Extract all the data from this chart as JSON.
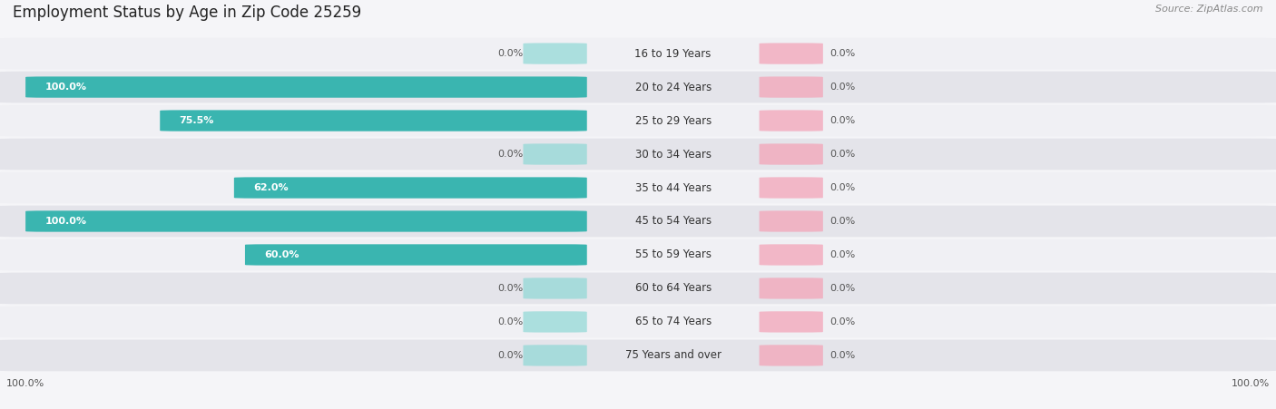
{
  "title": "Employment Status by Age in Zip Code 25259",
  "source": "Source: ZipAtlas.com",
  "categories": [
    "16 to 19 Years",
    "20 to 24 Years",
    "25 to 29 Years",
    "30 to 34 Years",
    "35 to 44 Years",
    "45 to 54 Years",
    "55 to 59 Years",
    "60 to 64 Years",
    "65 to 74 Years",
    "75 Years and over"
  ],
  "in_labor_force": [
    0.0,
    100.0,
    75.5,
    0.0,
    62.0,
    100.0,
    60.0,
    0.0,
    0.0,
    0.0
  ],
  "unemployed": [
    0.0,
    0.0,
    0.0,
    0.0,
    0.0,
    0.0,
    0.0,
    0.0,
    0.0,
    0.0
  ],
  "labor_color": "#3ab5b0",
  "labor_color_light": "#8ed8d5",
  "unemployed_color": "#f4a0b5",
  "unemployed_color_light": "#f4a0b5",
  "row_bg_odd": "#f0f0f4",
  "row_bg_even": "#e4e4ea",
  "title_fontsize": 12,
  "source_fontsize": 8,
  "label_fontsize": 8.5,
  "value_fontsize": 8,
  "legend_fontsize": 9,
  "bg_color": "#f5f5f8"
}
